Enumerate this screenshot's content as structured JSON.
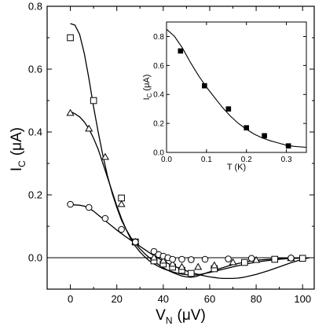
{
  "chart_data": [
    {
      "type": "scatter",
      "xlabel": "V",
      "xlabel_sub": "N",
      "xlabel_unit": "(μV)",
      "ylabel": "I",
      "ylabel_sub": "C",
      "ylabel_unit": "(μA)",
      "xlim": [
        -10,
        105
      ],
      "ylim": [
        -0.1,
        0.8
      ],
      "xticks": [
        0,
        20,
        40,
        60,
        80,
        100
      ],
      "yticks": [
        0.0,
        0.2,
        0.4,
        0.6,
        0.8
      ],
      "ytick_labels": [
        "0.0",
        "0.2",
        "0.4",
        "0.6",
        "0.8"
      ],
      "reference_line_y": 0.0,
      "series": [
        {
          "marker": "square",
          "points": [
            [
              0,
              0.7
            ],
            [
              10,
              0.5
            ],
            [
              22,
              0.19
            ],
            [
              28,
              0.05
            ],
            [
              36,
              -0.01
            ],
            [
              40,
              -0.02
            ],
            [
              44,
              -0.03
            ],
            [
              48,
              -0.04
            ],
            [
              52,
              -0.05
            ],
            [
              62,
              -0.035
            ],
            [
              75,
              -0.015
            ],
            [
              88,
              -0.005
            ],
            [
              100,
              -0.002
            ]
          ],
          "curve": [
            [
              0,
              0.745
            ],
            [
              2,
              0.74
            ],
            [
              4,
              0.71
            ],
            [
              6,
              0.65
            ],
            [
              8,
              0.57
            ],
            [
              10,
              0.48
            ],
            [
              12,
              0.4
            ],
            [
              14,
              0.325
            ],
            [
              16,
              0.26
            ],
            [
              18,
              0.205
            ],
            [
              20,
              0.16
            ],
            [
              22,
              0.12
            ],
            [
              24,
              0.09
            ],
            [
              26,
              0.065
            ],
            [
              28,
              0.045
            ],
            [
              30,
              0.028
            ],
            [
              32,
              0.013
            ],
            [
              34,
              0.0
            ],
            [
              36,
              -0.012
            ],
            [
              38,
              -0.022
            ],
            [
              40,
              -0.032
            ],
            [
              42,
              -0.04
            ],
            [
              44,
              -0.047
            ],
            [
              46,
              -0.053
            ],
            [
              48,
              -0.058
            ],
            [
              50,
              -0.061
            ],
            [
              52,
              -0.062
            ],
            [
              54,
              -0.06
            ],
            [
              56,
              -0.055
            ],
            [
              60,
              -0.045
            ],
            [
              65,
              -0.033
            ],
            [
              70,
              -0.022
            ],
            [
              75,
              -0.014
            ],
            [
              80,
              -0.008
            ],
            [
              90,
              -0.003
            ],
            [
              100,
              -0.001
            ]
          ]
        },
        {
          "marker": "triangle",
          "points": [
            [
              0,
              0.46
            ],
            [
              8,
              0.41
            ],
            [
              15,
              0.32
            ],
            [
              22,
              0.17
            ],
            [
              28,
              0.05
            ],
            [
              36,
              0.0
            ],
            [
              40,
              -0.01
            ],
            [
              44,
              -0.02
            ],
            [
              48,
              -0.03
            ],
            [
              55,
              -0.03
            ],
            [
              62,
              -0.025
            ],
            [
              70,
              -0.015
            ],
            [
              80,
              -0.008
            ],
            [
              95,
              -0.002
            ]
          ],
          "curve": [
            [
              0,
              0.465
            ],
            [
              2,
              0.458
            ],
            [
              4,
              0.448
            ],
            [
              6,
              0.432
            ],
            [
              8,
              0.41
            ],
            [
              10,
              0.38
            ],
            [
              12,
              0.345
            ],
            [
              14,
              0.3
            ],
            [
              16,
              0.255
            ],
            [
              18,
              0.21
            ],
            [
              20,
              0.165
            ],
            [
              22,
              0.125
            ],
            [
              24,
              0.09
            ],
            [
              26,
              0.06
            ],
            [
              28,
              0.037
            ],
            [
              30,
              0.018
            ],
            [
              32,
              0.003
            ],
            [
              34,
              -0.01
            ],
            [
              36,
              -0.02
            ],
            [
              38,
              -0.028
            ],
            [
              40,
              -0.035
            ],
            [
              42,
              -0.04
            ],
            [
              44,
              -0.045
            ],
            [
              46,
              -0.049
            ],
            [
              48,
              -0.052
            ],
            [
              50,
              -0.054
            ],
            [
              52,
              -0.055
            ],
            [
              54,
              -0.055
            ],
            [
              56,
              -0.053
            ],
            [
              60,
              -0.047
            ],
            [
              65,
              -0.038
            ],
            [
              70,
              -0.029
            ],
            [
              75,
              -0.021
            ],
            [
              80,
              -0.014
            ],
            [
              85,
              -0.009
            ],
            [
              90,
              -0.005
            ],
            [
              95,
              -0.002
            ],
            [
              100,
              -0.001
            ]
          ]
        },
        {
          "marker": "circle",
          "points": [
            [
              0,
              0.17
            ],
            [
              8,
              0.16
            ],
            [
              15,
              0.125
            ],
            [
              22,
              0.09
            ],
            [
              28,
              0.05
            ],
            [
              36,
              0.02
            ],
            [
              38,
              0.01
            ],
            [
              40,
              0.005
            ],
            [
              42,
              0.0
            ],
            [
              44,
              -0.005
            ],
            [
              48,
              -0.005
            ],
            [
              52,
              -0.006
            ],
            [
              58,
              -0.005
            ],
            [
              68,
              -0.004
            ],
            [
              78,
              -0.002
            ],
            [
              95,
              -0.001
            ]
          ],
          "curve": [
            [
              0,
              0.168
            ],
            [
              2,
              0.168
            ],
            [
              4,
              0.167
            ],
            [
              6,
              0.164
            ],
            [
              8,
              0.158
            ],
            [
              10,
              0.148
            ],
            [
              12,
              0.136
            ],
            [
              14,
              0.124
            ],
            [
              16,
              0.112
            ],
            [
              18,
              0.1
            ],
            [
              20,
              0.088
            ],
            [
              22,
              0.077
            ],
            [
              24,
              0.066
            ],
            [
              26,
              0.056
            ],
            [
              28,
              0.046
            ],
            [
              30,
              0.036
            ],
            [
              32,
              0.026
            ],
            [
              34,
              0.016
            ],
            [
              36,
              0.007
            ],
            [
              38,
              -0.002
            ],
            [
              40,
              -0.01
            ],
            [
              42,
              -0.018
            ],
            [
              44,
              -0.025
            ],
            [
              46,
              -0.031
            ],
            [
              48,
              -0.037
            ],
            [
              50,
              -0.042
            ],
            [
              52,
              -0.047
            ],
            [
              54,
              -0.051
            ],
            [
              56,
              -0.055
            ],
            [
              58,
              -0.058
            ],
            [
              60,
              -0.061
            ],
            [
              62,
              -0.063
            ],
            [
              64,
              -0.065
            ],
            [
              66,
              -0.066
            ],
            [
              68,
              -0.066
            ],
            [
              70,
              -0.066
            ],
            [
              72,
              -0.065
            ],
            [
              74,
              -0.063
            ],
            [
              76,
              -0.06
            ],
            [
              80,
              -0.053
            ],
            [
              85,
              -0.042
            ],
            [
              90,
              -0.029
            ],
            [
              95,
              -0.016
            ],
            [
              100,
              -0.005
            ],
            [
              103,
              0.0
            ]
          ]
        }
      ]
    },
    {
      "type": "scatter",
      "xlabel": "T (K)",
      "ylabel": "I",
      "ylabel_sub": "C",
      "ylabel_unit": "(μA)",
      "xlim": [
        0.0,
        0.35
      ],
      "ylim": [
        0.0,
        0.9
      ],
      "xticks": [
        0.0,
        0.1,
        0.2,
        0.3
      ],
      "xtick_labels": [
        "0.0",
        "0.1",
        "0.2",
        "0.3"
      ],
      "yticks": [
        0.0,
        0.2,
        0.4,
        0.6,
        0.8
      ],
      "ytick_labels": [
        "0.0",
        "0.2",
        "0.4",
        "0.6",
        "0.8"
      ],
      "series": [
        {
          "marker": "filled-square",
          "points": [
            [
              0.035,
              0.7
            ],
            [
              0.095,
              0.46
            ],
            [
              0.155,
              0.3
            ],
            [
              0.2,
              0.17
            ],
            [
              0.245,
              0.115
            ],
            [
              0.305,
              0.045
            ]
          ],
          "curve": [
            [
              0.0,
              0.85
            ],
            [
              0.02,
              0.8
            ],
            [
              0.04,
              0.72
            ],
            [
              0.06,
              0.62
            ],
            [
              0.08,
              0.53
            ],
            [
              0.1,
              0.45
            ],
            [
              0.12,
              0.38
            ],
            [
              0.14,
              0.31
            ],
            [
              0.16,
              0.25
            ],
            [
              0.18,
              0.2
            ],
            [
              0.2,
              0.16
            ],
            [
              0.22,
              0.125
            ],
            [
              0.24,
              0.1
            ],
            [
              0.26,
              0.08
            ],
            [
              0.28,
              0.065
            ],
            [
              0.3,
              0.05
            ],
            [
              0.32,
              0.042
            ],
            [
              0.35,
              0.035
            ]
          ]
        }
      ]
    }
  ]
}
